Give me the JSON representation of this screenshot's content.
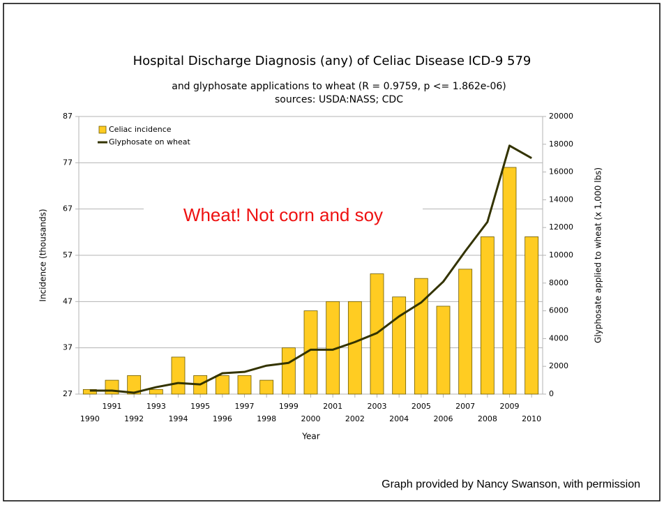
{
  "chart_data": {
    "type": "bar",
    "title": "Hospital Discharge Diagnosis (any) of Celiac Disease ICD-9 579",
    "subtitle": [
      "and glyphosate applications to wheat (R = 0.9759, p <= 1.862e-06)",
      "sources: USDA:NASS; CDC"
    ],
    "x_label": "Year",
    "y_label": "Incidence (thousands)",
    "y2_label": "Glyphosate applied to wheat (x 1,000 lbs)",
    "categories": [
      "1990",
      "1991",
      "1992",
      "1993",
      "1994",
      "1995",
      "1996",
      "1997",
      "1998",
      "1999",
      "2000",
      "2001",
      "2002",
      "2003",
      "2004",
      "2005",
      "2006",
      "2007",
      "2008",
      "2009",
      "2010"
    ],
    "series": [
      {
        "name": "Celiac incidence",
        "type": "bar",
        "color": "#ffcc22",
        "axis": "y",
        "values": [
          28,
          30,
          31,
          28,
          35,
          31,
          31,
          31,
          30,
          37,
          45,
          47,
          47,
          53,
          48,
          52,
          46,
          54,
          61,
          76,
          61
        ]
      },
      {
        "name": "Glyphosate on wheat",
        "type": "line",
        "color": "#333300",
        "axis": "y2",
        "values": [
          250,
          250,
          100,
          500,
          800,
          700,
          1500,
          1600,
          2050,
          2250,
          3200,
          3200,
          3750,
          4400,
          5600,
          6600,
          8100,
          10300,
          12400,
          17900,
          17000
        ]
      }
    ],
    "ylim": [
      27,
      87
    ],
    "yticks": [
      27,
      37,
      47,
      57,
      67,
      77,
      87
    ],
    "y2lim": [
      0,
      20000
    ],
    "y2ticks": [
      0,
      2000,
      4000,
      6000,
      8000,
      10000,
      12000,
      14000,
      16000,
      18000,
      20000
    ],
    "grid": true,
    "legend": "top-left",
    "annotation": "Wheat! Not corn and soy",
    "footer": "Graph provided by Nancy Swanson, with permission"
  }
}
